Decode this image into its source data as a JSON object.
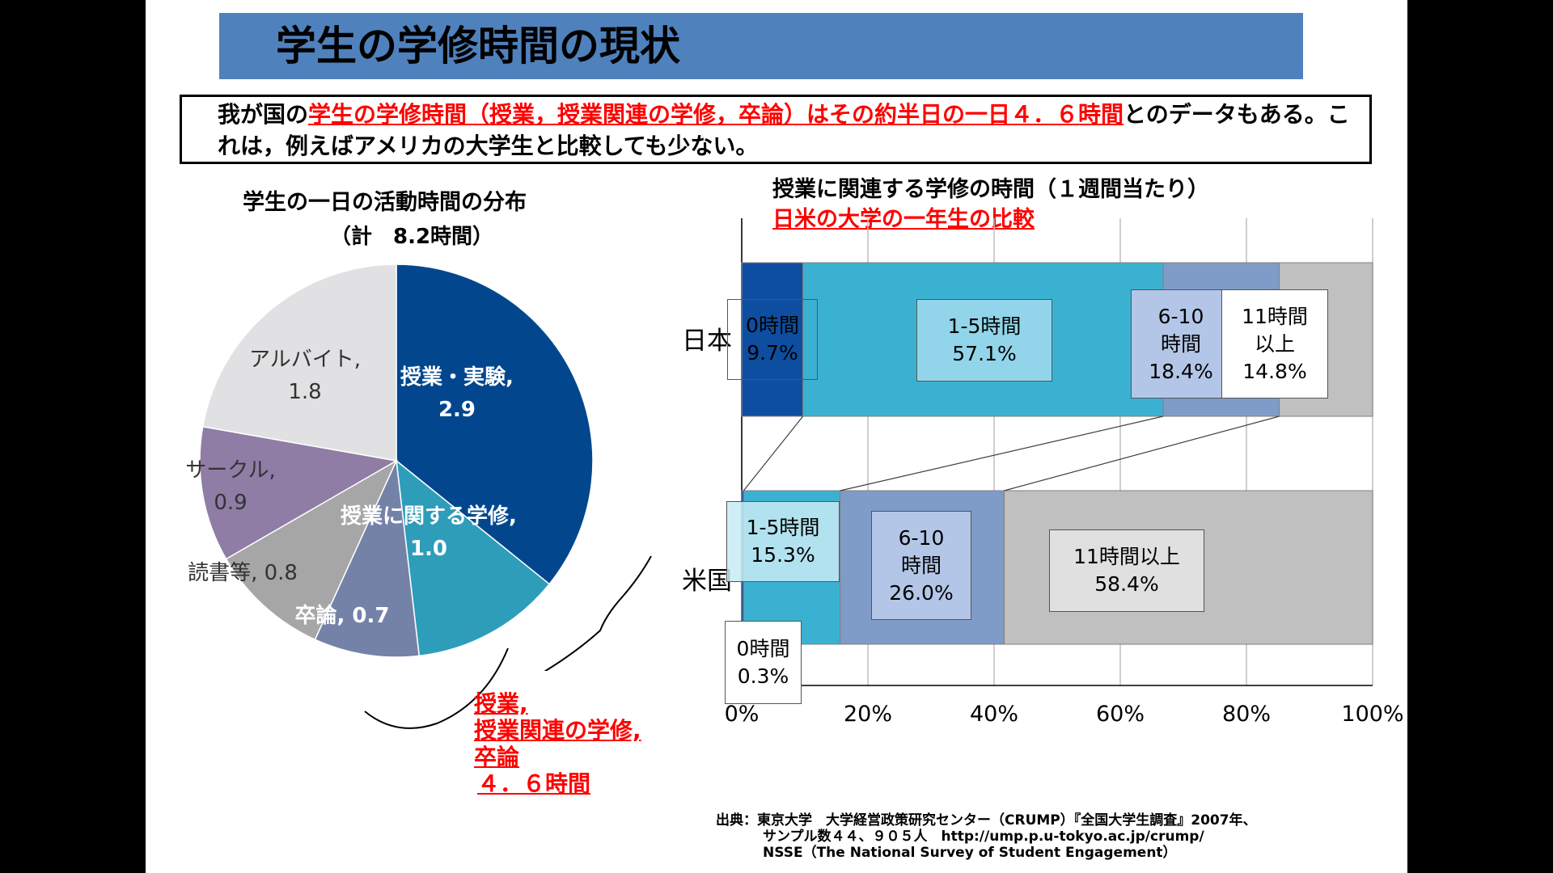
{
  "title": "学生の学修時間の現状",
  "intro": {
    "before": "我が国の",
    "highlight": "学生の学修時間（授業，授業関連の学修，卒論）はその約半日の一日４．６時間",
    "after": "とのデータもある。これは，例えばアメリカの大学生と比較しても少ない。"
  },
  "pie": {
    "title": "学生の一日の活動時間の分布",
    "subtitle": "（計　8.2時間）",
    "brace_label_lines": [
      "授業,",
      "授業関連の学修,",
      "卒論",
      "４．６時間"
    ]
  },
  "bar": {
    "title": "授業に関連する学修の時間（１週間当たり）",
    "subtitle": "日米の大学の一年生の比較"
  },
  "source": {
    "line1": "出典：東京大学　大学経営政策研究センター（CRUMP）『全国大学生調査』2007年、",
    "line2": "サンプル数４４、９０５人　http://ump.p.u-tokyo.ac.jp/crump/",
    "line3": "NSSE（The National Survey of Student Engagement）"
  },
  "colors": {
    "title_bar": "#4f81bd",
    "highlight": "#ff0000"
  },
  "chart_data": [
    {
      "type": "pie",
      "title": "学生の一日の活動時間の分布",
      "subtitle": "（計　8.2時間）",
      "slices": [
        {
          "label": "授業・実験,",
          "value": 2.9,
          "value_text": "2.9",
          "color": "#02478e"
        },
        {
          "label": "授業に関する学修,",
          "value": 1.0,
          "value_text": "1.0",
          "color": "#2e9db9"
        },
        {
          "label": "卒論,",
          "value": 0.7,
          "value_text": "0.7",
          "color": "#7582a8"
        },
        {
          "label": "読書等,",
          "value": 0.8,
          "value_text": "0.8",
          "color": "#a6a6a6"
        },
        {
          "label": "サークル,",
          "value": 0.9,
          "value_text": "0.9",
          "color": "#8f7da6"
        },
        {
          "label": "アルバイト,",
          "value": 1.8,
          "value_text": "1.8",
          "color": "#e1e1e3"
        }
      ]
    },
    {
      "type": "bar",
      "orientation": "horizontal",
      "stacked": true,
      "title": "授業に関連する学修の時間（１週間当たり）",
      "subtitle": "日米の大学の一年生の比較",
      "categories": [
        "日本",
        "米国"
      ],
      "xlim": [
        0,
        100
      ],
      "x_ticks": [
        "0%",
        "20%",
        "40%",
        "60%",
        "80%",
        "100%"
      ],
      "grid": true,
      "series": [
        {
          "name": "0時間",
          "values": [
            9.7,
            0.3
          ],
          "color": "#0d4ea0"
        },
        {
          "name": "1-5時間",
          "values": [
            57.1,
            15.3
          ],
          "color": "#3bb1d2"
        },
        {
          "name": "6-10時間",
          "values": [
            18.4,
            26.0
          ],
          "color": "#7f9bc8"
        },
        {
          "name": "11時間以上",
          "values": [
            14.8,
            58.4
          ],
          "color": "#c0c0c0"
        }
      ],
      "data_labels": {
        "jp": [
          {
            "lines": [
              "0時間",
              "9.7%"
            ]
          },
          {
            "lines": [
              "1-5時間",
              "57.1%"
            ]
          },
          {
            "lines": [
              "6-10",
              "時間",
              "18.4%"
            ]
          },
          {
            "lines": [
              "11時間",
              "以上",
              "14.8%"
            ]
          }
        ],
        "us": [
          {
            "lines": [
              "0時間",
              "0.3%"
            ]
          },
          {
            "lines": [
              "1-5時間",
              "15.3%"
            ]
          },
          {
            "lines": [
              "6-10",
              "時間",
              "26.0%"
            ]
          },
          {
            "lines": [
              "11時間以上",
              "58.4%"
            ]
          }
        ]
      }
    }
  ]
}
